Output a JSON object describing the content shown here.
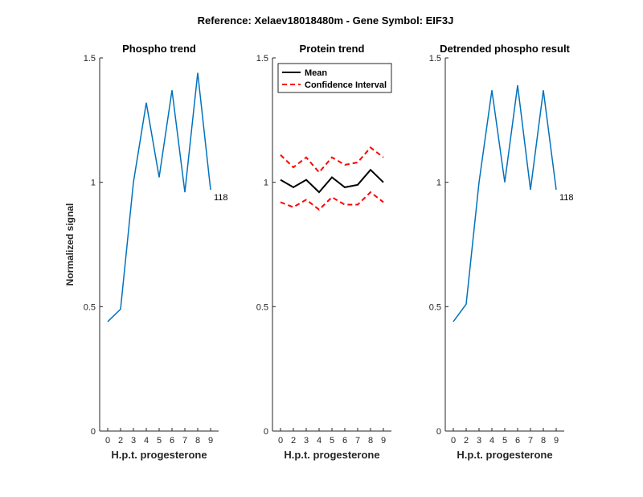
{
  "figure": {
    "suptitle": "Reference:  Xelaev18018480m - Gene Symbol:  EIF3J",
    "ylabel": "Normalized signal"
  },
  "colors": {
    "phospho": "#0072BD",
    "mean": "#000000",
    "ci": "#FF0000",
    "axis": "#262626"
  },
  "chart_data": [
    {
      "type": "line",
      "title": "Phospho trend",
      "xlabel": "H.p.t. progesterone",
      "ylabel": "Normalized signal",
      "categories": [
        "0",
        "2",
        "3",
        "4",
        "5",
        "6",
        "7",
        "8",
        "9"
      ],
      "ylim": [
        0,
        1.5
      ],
      "yticks": [
        "0",
        "0.5",
        "1",
        "1.5"
      ],
      "grid": false,
      "series": [
        {
          "values": [
            0.44,
            0.49,
            1.0,
            1.32,
            1.02,
            1.37,
            0.96,
            1.44,
            0.97
          ],
          "end_label": "118"
        }
      ]
    },
    {
      "type": "line",
      "title": "Protein trend",
      "xlabel": "H.p.t. progesterone",
      "categories": [
        "0",
        "2",
        "3",
        "4",
        "5",
        "6",
        "7",
        "8",
        "9"
      ],
      "ylim": [
        0,
        1.5
      ],
      "yticks": [
        "0",
        "0.5",
        "1",
        "1.5"
      ],
      "grid": false,
      "legend": {
        "position": "top-left",
        "entries": [
          "Mean",
          "Confidence Interval"
        ]
      },
      "series": [
        {
          "name": "Mean",
          "values": [
            1.01,
            0.98,
            1.01,
            0.96,
            1.02,
            0.98,
            0.99,
            1.05,
            1.0
          ]
        },
        {
          "name": "Confidence Interval",
          "values": [
            1.11,
            1.06,
            1.1,
            1.04,
            1.1,
            1.07,
            1.08,
            1.14,
            1.1
          ]
        },
        {
          "name": "Confidence Interval",
          "values": [
            0.92,
            0.9,
            0.93,
            0.89,
            0.94,
            0.91,
            0.91,
            0.96,
            0.92
          ]
        }
      ]
    },
    {
      "type": "line",
      "title": "Detrended phospho result",
      "xlabel": "H.p.t. progesterone",
      "categories": [
        "0",
        "2",
        "3",
        "4",
        "5",
        "6",
        "7",
        "8",
        "9"
      ],
      "ylim": [
        0,
        1.5
      ],
      "yticks": [
        "0",
        "0.5",
        "1",
        "1.5"
      ],
      "grid": false,
      "series": [
        {
          "values": [
            0.44,
            0.51,
            1.0,
            1.37,
            1.0,
            1.39,
            0.97,
            1.37,
            0.97
          ],
          "end_label": "118"
        }
      ]
    }
  ]
}
